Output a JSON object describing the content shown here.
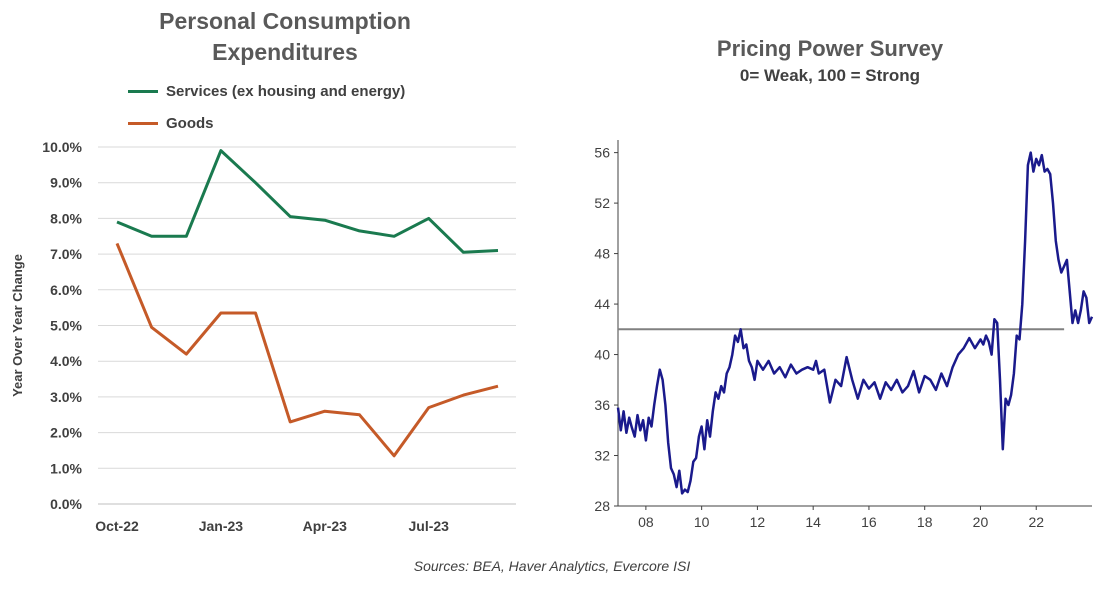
{
  "source": "Sources: BEA, Haver Analytics, Evercore ISI",
  "chart_data": [
    {
      "type": "line",
      "title": "Personal Consumption Expenditures",
      "title_lines": [
        "Personal Consumption",
        "Expenditures"
      ],
      "xlabel": "",
      "ylabel": "Year Over Year Change",
      "x": [
        "Oct-22",
        "Nov-22",
        "Dec-22",
        "Jan-23",
        "Feb-23",
        "Mar-23",
        "Apr-23",
        "May-23",
        "Jun-23",
        "Jul-23",
        "Aug-23",
        "Sep-23"
      ],
      "x_tick_labels": [
        "Oct-22",
        "Jan-23",
        "Apr-23",
        "Jul-23"
      ],
      "y_tick_labels": [
        "0.0%",
        "1.0%",
        "2.0%",
        "3.0%",
        "4.0%",
        "5.0%",
        "6.0%",
        "7.0%",
        "8.0%",
        "9.0%",
        "10.0%"
      ],
      "ylim": [
        0,
        10
      ],
      "grid": true,
      "legend": "top-left",
      "series": [
        {
          "name": "Services (ex housing and energy)",
          "color": "#1a7a4f",
          "values": [
            7.9,
            7.5,
            7.5,
            9.9,
            9.0,
            8.05,
            7.95,
            7.65,
            7.5,
            8.0,
            7.05,
            7.1
          ]
        },
        {
          "name": "Goods",
          "color": "#c55a28",
          "values": [
            7.3,
            4.95,
            4.2,
            5.35,
            5.35,
            2.3,
            2.6,
            2.5,
            1.35,
            2.7,
            3.05,
            3.3
          ]
        }
      ]
    },
    {
      "type": "line",
      "title": "Pricing Power Survey",
      "subtitle": "0= Weak, 100 = Strong",
      "xlabel": "",
      "ylabel": "",
      "xlim": [
        2007,
        2024
      ],
      "ylim": [
        28,
        57
      ],
      "x_tick_labels": [
        "08",
        "10",
        "12",
        "14",
        "16",
        "18",
        "20",
        "22"
      ],
      "y_tick_labels": [
        "28",
        "32",
        "36",
        "40",
        "44",
        "48",
        "52",
        "56"
      ],
      "grid": false,
      "reference_line": {
        "value": 42,
        "color": "#808080"
      },
      "series": [
        {
          "color": "#1a1a8c",
          "x": [
            2007.0,
            2007.1,
            2007.2,
            2007.3,
            2007.4,
            2007.5,
            2007.6,
            2007.7,
            2007.8,
            2007.9,
            2008.0,
            2008.1,
            2008.2,
            2008.3,
            2008.4,
            2008.5,
            2008.6,
            2008.7,
            2008.8,
            2008.9,
            2009.0,
            2009.1,
            2009.2,
            2009.3,
            2009.4,
            2009.5,
            2009.6,
            2009.7,
            2009.8,
            2009.9,
            2010.0,
            2010.1,
            2010.2,
            2010.3,
            2010.4,
            2010.5,
            2010.6,
            2010.7,
            2010.8,
            2010.9,
            2011.0,
            2011.1,
            2011.2,
            2011.3,
            2011.4,
            2011.5,
            2011.6,
            2011.7,
            2011.8,
            2011.9,
            2012.0,
            2012.2,
            2012.4,
            2012.6,
            2012.8,
            2013.0,
            2013.2,
            2013.4,
            2013.6,
            2013.8,
            2014.0,
            2014.1,
            2014.2,
            2014.4,
            2014.6,
            2014.8,
            2015.0,
            2015.2,
            2015.4,
            2015.6,
            2015.8,
            2016.0,
            2016.2,
            2016.4,
            2016.6,
            2016.8,
            2017.0,
            2017.2,
            2017.4,
            2017.6,
            2017.8,
            2018.0,
            2018.2,
            2018.4,
            2018.6,
            2018.8,
            2019.0,
            2019.2,
            2019.4,
            2019.6,
            2019.8,
            2020.0,
            2020.1,
            2020.2,
            2020.3,
            2020.4,
            2020.5,
            2020.6,
            2020.7,
            2020.8,
            2020.9,
            2021.0,
            2021.1,
            2021.2,
            2021.3,
            2021.4,
            2021.5,
            2021.6,
            2021.7,
            2021.8,
            2021.9,
            2022.0,
            2022.1,
            2022.2,
            2022.3,
            2022.4,
            2022.5,
            2022.6,
            2022.7,
            2022.8,
            2022.9,
            2023.0,
            2023.1,
            2023.2,
            2023.3,
            2023.4,
            2023.5,
            2023.6,
            2023.7,
            2023.8,
            2023.9,
            2024.0
          ],
          "values": [
            35.8,
            34.0,
            35.5,
            33.8,
            35.0,
            34.2,
            33.5,
            35.2,
            34.0,
            34.8,
            33.2,
            35.0,
            34.3,
            36.0,
            37.5,
            38.8,
            38.0,
            36.0,
            33.0,
            31.0,
            30.5,
            29.5,
            30.8,
            29.0,
            29.3,
            29.1,
            30.0,
            31.5,
            31.8,
            33.5,
            34.3,
            32.5,
            34.8,
            33.5,
            35.5,
            37.0,
            36.5,
            37.5,
            37.0,
            38.5,
            39.0,
            40.0,
            41.5,
            41.0,
            42.0,
            40.5,
            40.8,
            39.5,
            39.0,
            38.0,
            39.5,
            38.8,
            39.5,
            38.5,
            39.0,
            38.2,
            39.2,
            38.5,
            38.8,
            39.0,
            38.8,
            39.5,
            38.5,
            38.8,
            36.2,
            38.0,
            37.5,
            39.8,
            38.0,
            36.5,
            38.0,
            37.3,
            37.8,
            36.5,
            37.8,
            37.2,
            38.0,
            37.0,
            37.5,
            38.7,
            37.0,
            38.3,
            38.0,
            37.2,
            38.5,
            37.5,
            39.0,
            40.0,
            40.5,
            41.3,
            40.5,
            41.2,
            40.8,
            41.5,
            41.0,
            40.0,
            42.8,
            42.5,
            38.0,
            32.5,
            36.5,
            36.0,
            36.8,
            38.5,
            41.5,
            41.2,
            44.0,
            49.0,
            55.0,
            56.0,
            54.5,
            55.5,
            55.0,
            55.8,
            54.5,
            54.7,
            54.3,
            52.0,
            49.0,
            47.5,
            46.5,
            47.0,
            47.5,
            45.0,
            42.5,
            43.5,
            42.5,
            43.5,
            45.0,
            44.5,
            42.5,
            43.0
          ]
        }
      ]
    }
  ]
}
